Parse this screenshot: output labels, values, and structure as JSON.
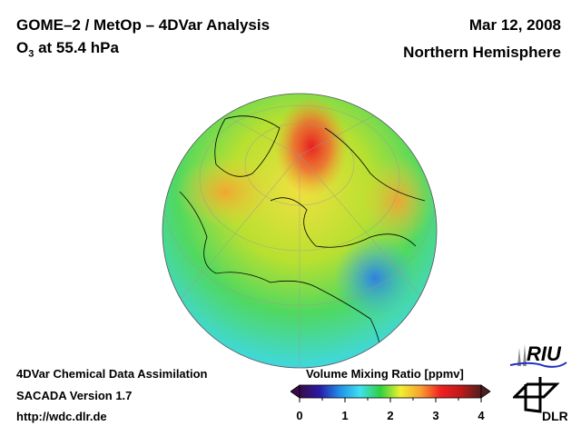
{
  "header": {
    "title": "GOME–2 / MetOp – 4DVar Analysis",
    "species": "O",
    "species_sub": "3",
    "species_rest": " at 55.4 hPa",
    "date": "Mar 12, 2008",
    "region": "Northern Hemisphere"
  },
  "footer": {
    "line1": "4DVar Chemical Data Assimilation",
    "line2": "SACADA Version 1.7",
    "line3": "http://wdc.dlr.de"
  },
  "colorbar": {
    "title": "Volume Mixing Ratio [ppmv]",
    "ticks": [
      "0",
      "1",
      "2",
      "3",
      "4"
    ],
    "range": [
      0,
      4
    ],
    "colors": [
      "#3a0a4a",
      "#2a1aa8",
      "#2090e8",
      "#40e0f0",
      "#30d040",
      "#f0f030",
      "#f8a030",
      "#f02020",
      "#c01818",
      "#502020"
    ]
  },
  "logos": {
    "riu": "RIU",
    "dlr": "DLR"
  }
}
